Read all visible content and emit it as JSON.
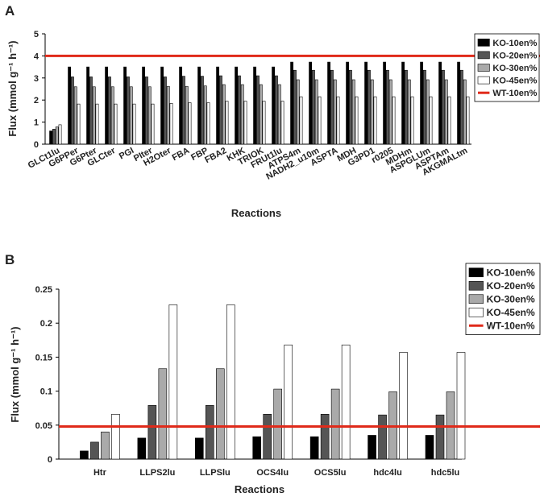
{
  "chart_data": [
    {
      "panel": "A",
      "type": "bar",
      "xlabel": "Reactions",
      "ylabel": "Flux (mmol g⁻¹ h⁻¹)",
      "ylim": [
        0,
        5
      ],
      "yticks": [
        0,
        1,
        2,
        3,
        4,
        5
      ],
      "categories": [
        "GLCt1lu",
        "G6PPer",
        "G6Pter",
        "GLCter",
        "PGI",
        "PIter",
        "H2Oter",
        "FBA",
        "FBP",
        "FBA2",
        "KHK",
        "TRIOK",
        "FRUt1lu",
        "ATPS4m",
        "NADH2_u10m",
        "ASPTA",
        "MDH",
        "G3PD1",
        "r0205",
        "MDHm",
        "ASPGLUm",
        "ASPTAm",
        "AKGMALtm"
      ],
      "series": [
        {
          "name": "KO-10en%",
          "color": "#000000",
          "values": [
            0.6,
            3.5,
            3.5,
            3.5,
            3.5,
            3.5,
            3.5,
            3.5,
            3.5,
            3.5,
            3.5,
            3.5,
            3.5,
            3.72,
            3.72,
            3.72,
            3.72,
            3.72,
            3.72,
            3.72,
            3.72,
            3.72,
            3.72
          ]
        },
        {
          "name": "KO-20en%",
          "color": "#555555",
          "values": [
            0.68,
            3.05,
            3.05,
            3.05,
            3.05,
            3.05,
            3.05,
            3.08,
            3.08,
            3.1,
            3.1,
            3.1,
            3.1,
            3.35,
            3.35,
            3.35,
            3.35,
            3.35,
            3.35,
            3.35,
            3.35,
            3.35,
            3.35
          ]
        },
        {
          "name": "KO-30en%",
          "color": "#aaaaaa",
          "values": [
            0.78,
            2.6,
            2.6,
            2.6,
            2.6,
            2.6,
            2.62,
            2.62,
            2.64,
            2.7,
            2.7,
            2.7,
            2.7,
            2.92,
            2.92,
            2.92,
            2.92,
            2.92,
            2.92,
            2.92,
            2.92,
            2.92,
            2.92
          ]
        },
        {
          "name": "KO-45en%",
          "color": "#ffffff",
          "values": [
            0.88,
            1.82,
            1.82,
            1.82,
            1.82,
            1.82,
            1.85,
            1.88,
            1.88,
            1.95,
            1.95,
            1.95,
            1.95,
            2.15,
            2.15,
            2.15,
            2.15,
            2.15,
            2.15,
            2.15,
            2.15,
            2.15,
            2.15
          ]
        }
      ],
      "reference_line": {
        "name": "WT-10en%",
        "value": 4.0,
        "color": "#e02a1a"
      }
    },
    {
      "panel": "B",
      "type": "bar",
      "xlabel": "Reactions",
      "ylabel": "Flux (mmol g⁻¹ h⁻¹)",
      "ylim": [
        0,
        0.25
      ],
      "yticks": [
        0,
        0.05,
        0.1,
        0.15,
        0.2,
        0.25
      ],
      "ytick_labels": [
        "0",
        "0.05",
        "0.1",
        "0.15",
        "0.2",
        "0.25"
      ],
      "categories": [
        "Htr",
        "LLPS2lu",
        "LLPSlu",
        "OCS4lu",
        "OCS5lu",
        "hdc4lu",
        "hdc5lu"
      ],
      "series": [
        {
          "name": "KO-10en%",
          "color": "#000000",
          "values": [
            0.012,
            0.031,
            0.031,
            0.033,
            0.033,
            0.035,
            0.035
          ]
        },
        {
          "name": "KO-20en%",
          "color": "#555555",
          "values": [
            0.025,
            0.079,
            0.079,
            0.066,
            0.066,
            0.065,
            0.065
          ]
        },
        {
          "name": "KO-30en%",
          "color": "#aaaaaa",
          "values": [
            0.04,
            0.133,
            0.133,
            0.103,
            0.103,
            0.099,
            0.099
          ]
        },
        {
          "name": "KO-45en%",
          "color": "#ffffff",
          "values": [
            0.066,
            0.227,
            0.227,
            0.168,
            0.168,
            0.157,
            0.157
          ]
        }
      ],
      "reference_line": {
        "name": "WT-10en%",
        "value": 0.048,
        "color": "#e02a1a"
      }
    }
  ]
}
